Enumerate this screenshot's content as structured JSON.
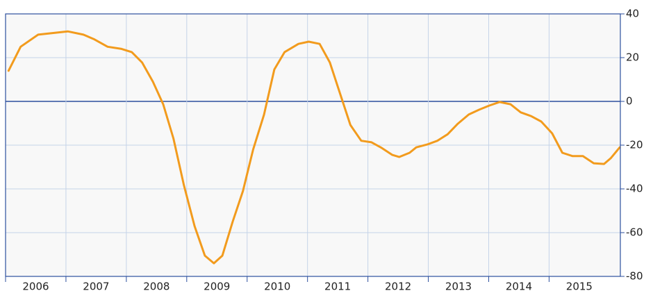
{
  "chart_data": {
    "type": "line",
    "x": [
      2006.05,
      2006.25,
      2006.54,
      2006.83,
      2007.03,
      2007.29,
      2007.46,
      2007.69,
      2007.92,
      2008.09,
      2008.26,
      2008.44,
      2008.61,
      2008.78,
      2008.95,
      2009.13,
      2009.3,
      2009.45,
      2009.59,
      2009.76,
      2009.93,
      2010.1,
      2010.28,
      2010.45,
      2010.62,
      2010.85,
      2011.02,
      2011.2,
      2011.37,
      2011.54,
      2011.71,
      2011.89,
      2012.06,
      2012.23,
      2012.4,
      2012.52,
      2012.69,
      2012.8,
      2012.98,
      2013.15,
      2013.32,
      2013.49,
      2013.67,
      2013.84,
      2014.01,
      2014.18,
      2014.36,
      2014.53,
      2014.7,
      2014.87,
      2015.05,
      2015.22,
      2015.39,
      2015.56,
      2015.74,
      2015.91,
      2016.02,
      2016.17
    ],
    "series": [
      {
        "color": "#f29b1d",
        "values": [
          14,
          25,
          30.5,
          31.4,
          32,
          30.5,
          28.5,
          25,
          24,
          22.5,
          17.8,
          9,
          -1.3,
          -17,
          -38,
          -57,
          -70.5,
          -74,
          -70.5,
          -55,
          -41,
          -22,
          -6,
          14.6,
          22.5,
          26.3,
          27.3,
          26.3,
          17.8,
          3.5,
          -10.8,
          -18,
          -18.7,
          -21.3,
          -24.4,
          -25.4,
          -23.5,
          -21,
          -19.7,
          -18,
          -15,
          -10.2,
          -6,
          -3.8,
          -1.9,
          -0.3,
          -1.3,
          -5,
          -6.7,
          -9.2,
          -14.6,
          -23.5,
          -25,
          -25,
          -28.3,
          -28.6,
          -26,
          -21
        ]
      }
    ],
    "xlim": [
      2006,
      2016.18
    ],
    "xticks": [
      2006,
      2007,
      2008,
      2009,
      2010,
      2011,
      2012,
      2013,
      2014,
      2015
    ],
    "ylim": [
      -80,
      40
    ],
    "yticks": [
      -80,
      -60,
      -40,
      -20,
      0,
      20,
      40
    ],
    "grid": true
  }
}
